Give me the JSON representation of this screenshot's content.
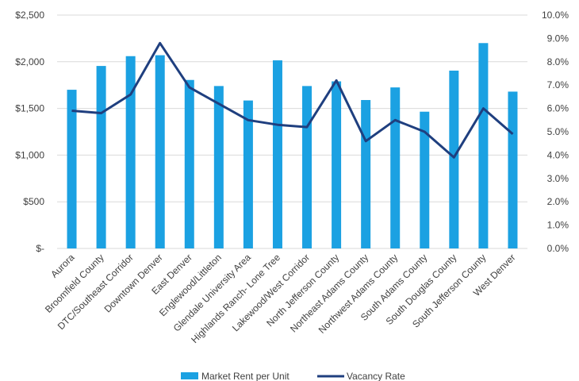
{
  "chart_data": {
    "type": "bar",
    "categories": [
      "Aurora",
      "Broomfield County",
      "DTC/Southeast Corridor",
      "Downtown Denver",
      "East Denver",
      "Englewood/Littleton",
      "Glendale University Area",
      "Highlands Ranch- Lone Tree",
      "Lakewood/West Corridor",
      "North Jefferson County",
      "Northeast Adams County",
      "Northwest Adams County",
      "South Adams County",
      "South Douglas County",
      "South Jefferson County",
      "West Denver"
    ],
    "series": [
      {
        "name": "Market Rent per Unit",
        "type": "bar",
        "axis": "left",
        "color": "#1ba1e2",
        "values": [
          1700,
          1955,
          2060,
          2070,
          1805,
          1740,
          1585,
          2015,
          1740,
          1790,
          1590,
          1725,
          1465,
          1905,
          2200,
          1680
        ]
      },
      {
        "name": "Vacancy Rate",
        "type": "line",
        "axis": "right",
        "color": "#1f3f7f",
        "values": [
          0.059,
          0.058,
          0.066,
          0.088,
          0.069,
          0.062,
          0.055,
          0.053,
          0.052,
          0.072,
          0.046,
          0.055,
          0.05,
          0.039,
          0.06,
          0.049
        ]
      }
    ],
    "y_left": {
      "ylim": [
        0,
        2500
      ],
      "ticks": [
        0,
        500,
        1000,
        1500,
        2000,
        2500
      ],
      "tick_labels": [
        "$-",
        "$500",
        "$1,000",
        "$1,500",
        "$2,000",
        "$2,500"
      ]
    },
    "y_right": {
      "ylim": [
        0,
        0.1
      ],
      "ticks": [
        0,
        0.01,
        0.02,
        0.03,
        0.04,
        0.05,
        0.06,
        0.07,
        0.08,
        0.09,
        0.1
      ],
      "tick_labels": [
        "0.0%",
        "1.0%",
        "2.0%",
        "3.0%",
        "4.0%",
        "5.0%",
        "6.0%",
        "7.0%",
        "8.0%",
        "9.0%",
        "10.0%"
      ]
    },
    "grid": true,
    "legend": "bottom-center"
  }
}
